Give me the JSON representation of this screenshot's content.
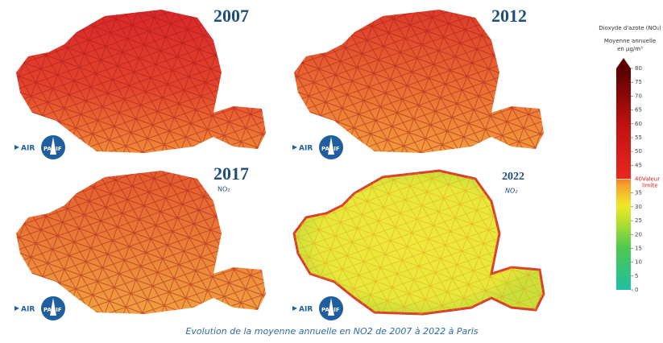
{
  "panels": [
    {
      "year": "2007"
    },
    {
      "year": "2012"
    },
    {
      "year": "2017",
      "pollutant": "NO₂"
    },
    {
      "year": "2022",
      "pollutant": "NO₂"
    }
  ],
  "logo": {
    "left": "AIR",
    "right": "PARIF"
  },
  "legend": {
    "title": "Dioxyde d'azote (NO₂)",
    "subtitle_1": "Moyenne annuelle",
    "subtitle_2": "en µg/m³",
    "lim": [
      0,
      80
    ],
    "ticks": [
      0,
      5,
      10,
      15,
      20,
      25,
      30,
      35,
      45,
      50,
      55,
      60,
      65,
      70,
      75,
      80
    ],
    "limit": {
      "value": 40,
      "label_1": "Valeur",
      "label_2": "limite"
    }
  },
  "caption": "Evolution de la moyenne annuelle en NO2 de 2007 à 2022 à Paris"
}
